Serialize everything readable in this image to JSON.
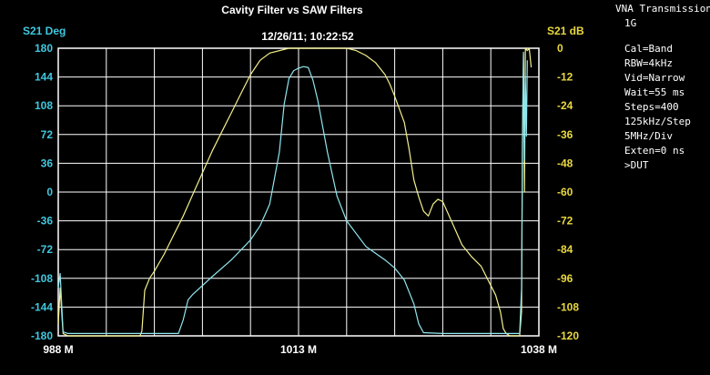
{
  "side_panel": {
    "title": "VNA Transmission",
    "subtitle": "1G",
    "settings": [
      "Cal=Band",
      "RBW=4kHz",
      "Vid=Narrow",
      "Wait=55 ms",
      "Steps=400",
      "125kHz/Step",
      "5MHz/Div",
      "Exten=0 ns",
      ">DUT"
    ]
  },
  "colors": {
    "background": "#000000",
    "grid": "#ffffff",
    "left_axis": "#40c8e0",
    "right_axis": "#e8d840",
    "trace_cyan": "#8fe6ee",
    "trace_yellow": "#f4f08c"
  },
  "chart_data": {
    "type": "line",
    "title": "Cavity Filter vs SAW Filters",
    "subtitle": "12/26/11; 10:22:52",
    "ylabel_left": "S21 Deg",
    "ylabel_right": "S21 dB",
    "x_ticks": [
      "988 M",
      "1013 M",
      "1038 M"
    ],
    "y_left_ticks": [
      "180",
      "144",
      "108",
      "72",
      "36",
      "0",
      "-36",
      "-72",
      "-108",
      "-144",
      "-180"
    ],
    "y_right_ticks": [
      "0",
      "-12",
      "-24",
      "-36",
      "-48",
      "-60",
      "-72",
      "-84",
      "-96",
      "-108",
      "-120"
    ],
    "xlim": [
      988,
      1038
    ],
    "ylim_left": [
      -180,
      180
    ],
    "ylim_right": [
      -120,
      0
    ],
    "grid": true,
    "series": [
      {
        "axis": "right",
        "color": "#f4f08c",
        "x": [
          988,
          988.2,
          988.5,
          989,
          995,
          996.5,
          996.7,
          997,
          997.5,
          998,
          999,
          1000,
          1001,
          1002,
          1003,
          1004,
          1005,
          1006,
          1007,
          1007.5,
          1008,
          1009,
          1010,
          1012,
          1014,
          1016,
          1018,
          1019,
          1020,
          1021,
          1022,
          1022.5,
          1023,
          1024,
          1024.5,
          1025,
          1025.5,
          1026,
          1026.5,
          1027,
          1027.5,
          1028,
          1029,
          1030,
          1031,
          1032,
          1033,
          1033.5,
          1034,
          1034.3,
          1034.6,
          1035,
          1035.5,
          1036,
          1036.2,
          1036.3,
          1036.4,
          1036.5,
          1036.6,
          1036.8,
          1037,
          1037.2
        ],
        "y": [
          -115,
          -100,
          -119,
          -120,
          -120,
          -120,
          -118,
          -101,
          -96,
          -93,
          -86,
          -78,
          -70,
          -61,
          -52,
          -43,
          -35,
          -27,
          -19,
          -15,
          -11,
          -5,
          -2,
          0,
          0,
          0,
          0,
          -1,
          -3,
          -6,
          -11,
          -15,
          -20,
          -31,
          -42,
          -55,
          -62,
          -68,
          -70,
          -65,
          -63,
          -64,
          -73,
          -82,
          -87,
          -91,
          -99,
          -103,
          -110,
          -117,
          -119,
          -120,
          -120,
          -120,
          -110,
          -40,
          -2,
          -60,
          0,
          -1,
          0,
          -8
        ]
      },
      {
        "axis": "left",
        "color": "#8fe6ee",
        "x": [
          988,
          988.2,
          988.5,
          989,
          993,
          1000.5,
          1001,
          1001.5,
          1002,
          1004,
          1006,
          1008,
          1009,
          1010,
          1011,
          1011.5,
          1012,
          1012.5,
          1013,
          1013.5,
          1014,
          1014.5,
          1015,
          1016,
          1017,
          1018,
          1020,
          1022,
          1023,
          1024,
          1024.5,
          1025,
          1025.5,
          1026,
          1028,
          1033,
          1034,
          1036,
          1036.2,
          1036.3,
          1036.4,
          1036.5,
          1036.6,
          1036.7,
          1036.8
        ],
        "y": [
          -120,
          -102,
          -175,
          -177,
          -177,
          -177,
          -160,
          -135,
          -128,
          -106,
          -85,
          -60,
          -42,
          -15,
          50,
          110,
          142,
          152,
          155,
          157,
          156,
          140,
          115,
          50,
          -5,
          -36,
          -68,
          -85,
          -95,
          -110,
          -125,
          -140,
          -165,
          -176,
          -177,
          -177,
          -177,
          -177,
          -120,
          80,
          175,
          40,
          145,
          70,
          165
        ]
      }
    ]
  }
}
